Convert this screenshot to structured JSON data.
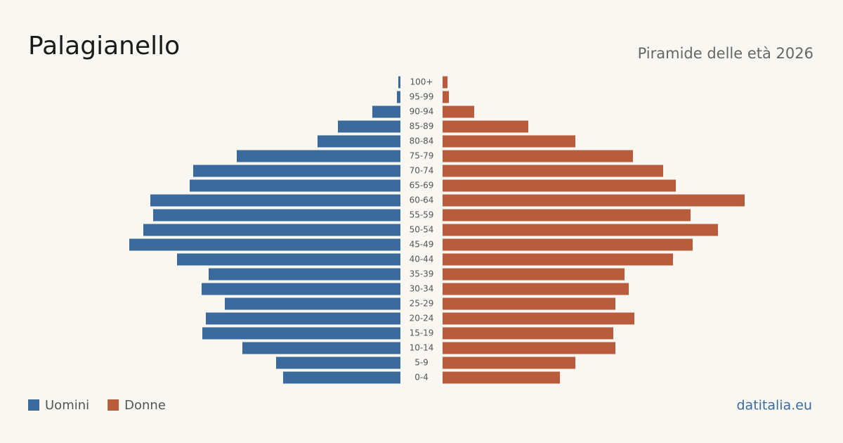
{
  "chart_data": {
    "type": "pyramid",
    "title": "Palagianello",
    "subtitle": "Piramide delle età 2026",
    "source": "datitalia.eu",
    "categories": [
      "0-4",
      "5-9",
      "10-14",
      "15-19",
      "20-24",
      "25-29",
      "30-34",
      "35-39",
      "40-44",
      "45-49",
      "50-54",
      "55-59",
      "60-64",
      "65-69",
      "70-74",
      "75-79",
      "80-84",
      "85-89",
      "90-94",
      "95-99",
      "100+"
    ],
    "series": [
      {
        "name": "Uomini",
        "color": "#3b6a9c",
        "values": [
          167,
          177,
          225,
          282,
          277,
          250,
          283,
          273,
          318,
          386,
          366,
          352,
          356,
          300,
          295,
          233,
          118,
          89,
          40,
          5,
          3
        ]
      },
      {
        "name": "Donne",
        "color": "#b95c3c",
        "values": [
          167,
          189,
          246,
          243,
          273,
          246,
          265,
          259,
          328,
          356,
          392,
          353,
          430,
          332,
          314,
          271,
          189,
          122,
          45,
          9,
          7
        ]
      }
    ],
    "xlim": [
      0,
      440
    ]
  }
}
